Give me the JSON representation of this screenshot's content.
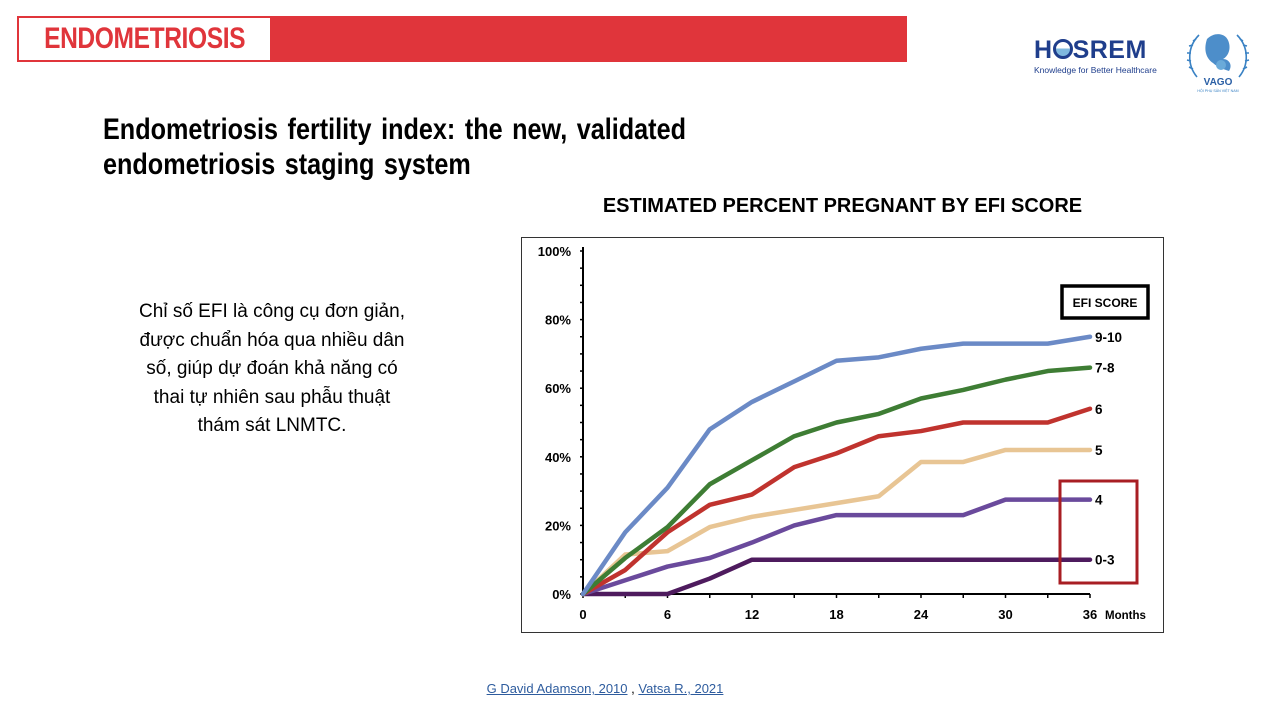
{
  "header": {
    "banner_title": "ENDOMETRIOSIS",
    "banner_color": "#e0353b",
    "logos": {
      "hosrem": {
        "name_pre": "H",
        "name_post": "SREM",
        "tagline": "Knowledge for Better Healthcare"
      },
      "vago": {
        "name": "VAGO",
        "subtitle": "HỘI PHỤ SẢN VIỆT NAM"
      }
    }
  },
  "slide": {
    "headline_line1": "Endometriosis fertility index: the new, validated",
    "headline_line2": "endometriosis staging system",
    "body_lines": [
      "Chỉ số EFI là công cụ đơn giản,",
      "được chuẩn hóa qua nhiều dân",
      "số, giúp dự đoán khả năng có",
      "thai tự nhiên sau phẫu thuật",
      "thám sát LNMTC."
    ]
  },
  "references": {
    "ref1": "G David Adamson, 2010",
    "separator": " , ",
    "ref2": "Vatsa R., 2021"
  },
  "chart_data": {
    "type": "line",
    "title": "ESTIMATED PERCENT PREGNANT BY EFI SCORE",
    "xlabel": "Months",
    "ylabel": "",
    "x": [
      0,
      3,
      6,
      9,
      12,
      15,
      18,
      21,
      24,
      27,
      30,
      33,
      36
    ],
    "xlim": [
      0,
      36
    ],
    "ylim": [
      0,
      100
    ],
    "x_tick_labels": [
      "0",
      "6",
      "12",
      "18",
      "24",
      "30",
      "36"
    ],
    "x_tick_values": [
      0,
      6,
      12,
      18,
      24,
      30,
      36
    ],
    "y_tick_labels": [
      "0%",
      "20%",
      "40%",
      "60%",
      "80%",
      "100%"
    ],
    "y_tick_values": [
      0,
      20,
      40,
      60,
      80,
      100
    ],
    "grid": false,
    "legend_title": "EFI SCORE",
    "legend_placement": "top-right",
    "highlight_box": {
      "around_series": [
        "4",
        "0-3"
      ],
      "color": "#a81e23"
    },
    "series": [
      {
        "name": "9-10",
        "color": "#6b8ac6",
        "values": [
          0,
          18,
          31,
          48,
          56,
          62,
          68,
          69,
          71.5,
          73,
          73,
          73,
          75
        ]
      },
      {
        "name": "7-8",
        "color": "#3e7d34",
        "values": [
          0,
          10.5,
          19.5,
          32,
          39,
          46,
          50,
          52.5,
          57,
          59.5,
          62.5,
          65,
          66
        ]
      },
      {
        "name": "6",
        "color": "#c0332e",
        "values": [
          0,
          7,
          18,
          26,
          29,
          37,
          41,
          46,
          47.5,
          50,
          50,
          50,
          54
        ]
      },
      {
        "name": "5",
        "color": "#e8c594",
        "values": [
          0,
          11.5,
          12.5,
          19.5,
          22.5,
          24.5,
          26.5,
          28.5,
          38.5,
          38.5,
          42,
          42,
          42
        ]
      },
      {
        "name": "4",
        "color": "#6a4a9c",
        "values": [
          0,
          4,
          8,
          10.5,
          15,
          20,
          23,
          23,
          23,
          23,
          27.5,
          27.5,
          27.5
        ]
      },
      {
        "name": "0-3",
        "color": "#4e1b5e",
        "values": [
          0,
          0,
          0,
          4.5,
          10,
          10,
          10,
          10,
          10,
          10,
          10,
          10,
          10
        ]
      }
    ]
  }
}
